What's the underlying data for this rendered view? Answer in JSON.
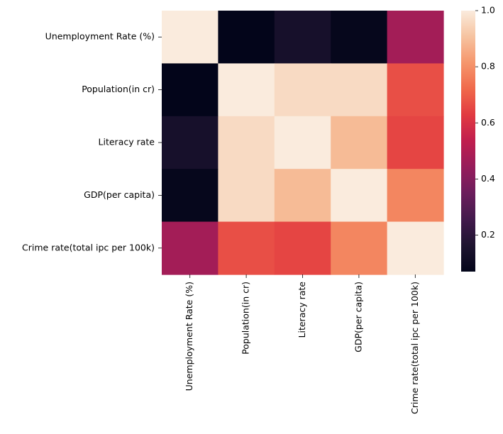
{
  "chart_data": {
    "type": "heatmap",
    "title": "",
    "xlabel": "",
    "ylabel": "",
    "rows": [
      "Unemployment Rate (%)",
      "Population(in cr)",
      "Literacy rate",
      "GDP(per capita)",
      "Crime rate(total ipc per 100k)"
    ],
    "columns": [
      "Unemployment Rate (%)",
      "Population(in cr)",
      "Literacy rate",
      "GDP(per capita)",
      "Crime rate(total ipc per 100k)"
    ],
    "values": [
      [
        1.0,
        0.07,
        0.14,
        0.08,
        0.47
      ],
      [
        0.07,
        1.0,
        0.96,
        0.96,
        0.67
      ],
      [
        0.14,
        0.96,
        1.0,
        0.89,
        0.65
      ],
      [
        0.08,
        0.96,
        0.89,
        1.0,
        0.78
      ],
      [
        0.47,
        0.67,
        0.65,
        0.78,
        1.0
      ]
    ],
    "colorbar": {
      "colormap": "rocket",
      "range": [
        0.07,
        1.0
      ],
      "ticks": [
        "0.2",
        "0.4",
        "0.6",
        "0.8",
        "1.0"
      ],
      "tick_values": [
        0.2,
        0.4,
        0.6,
        0.8,
        1.0
      ]
    }
  }
}
